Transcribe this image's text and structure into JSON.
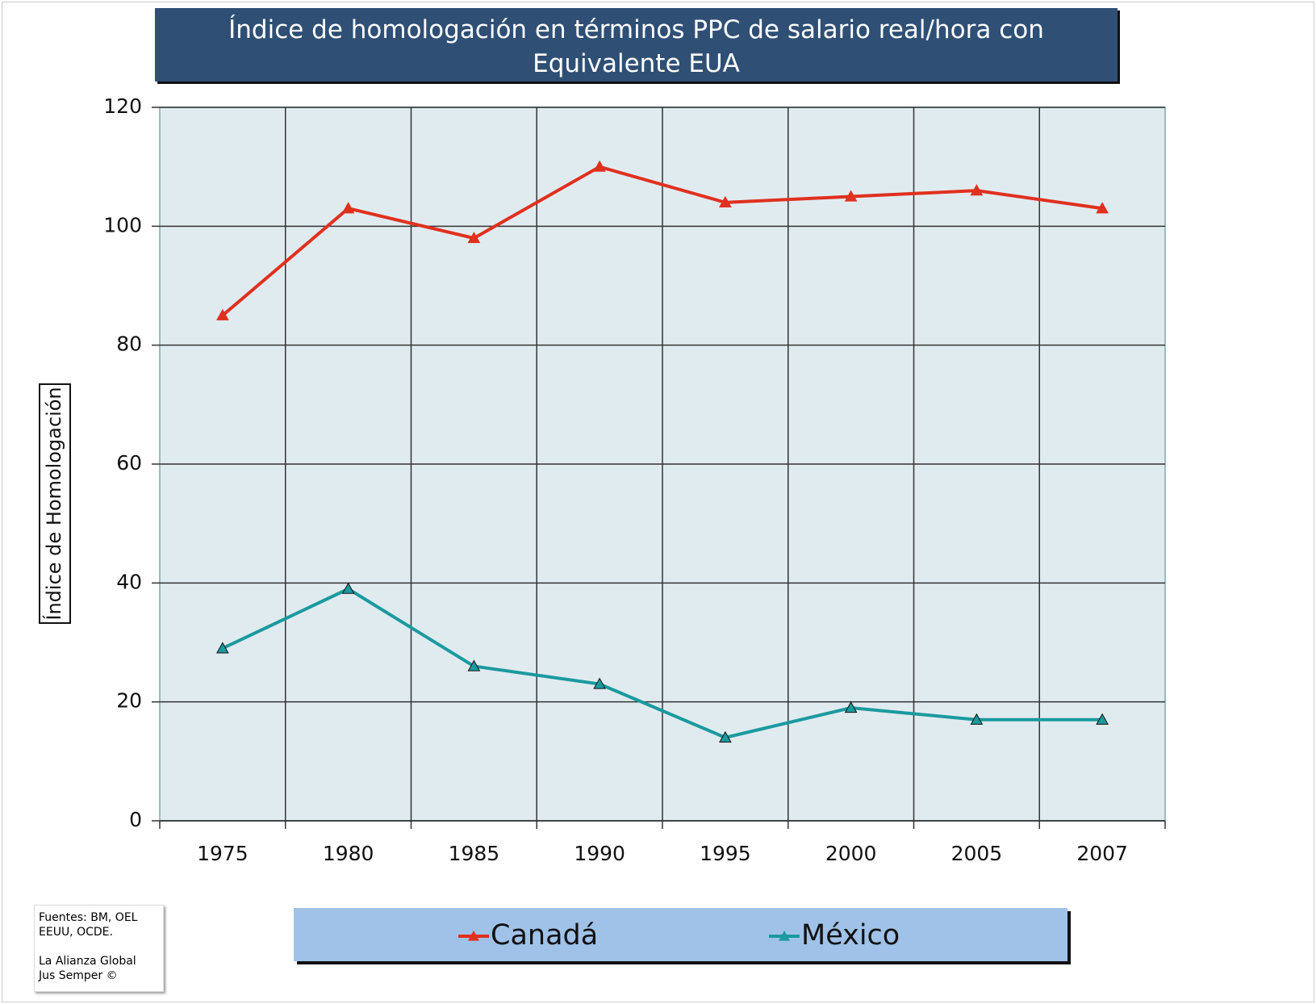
{
  "chart_data": {
    "type": "line",
    "title": "Índice de homologación en términos PPC de salario real/hora con Equivalente EUA",
    "y_label": "Índice de Homologación",
    "categories": [
      "1975",
      "1980",
      "1985",
      "1990",
      "1995",
      "2000",
      "2005",
      "2007"
    ],
    "series": [
      {
        "name": "Canadá",
        "color": "#e0301e",
        "values": [
          85,
          103,
          98,
          110,
          104,
          105,
          106,
          103
        ]
      },
      {
        "name": "México",
        "color": "#1a9a9e",
        "values": [
          29,
          39,
          26,
          23,
          14,
          19,
          17,
          17
        ]
      }
    ],
    "ylim": [
      0,
      120
    ],
    "yticks": [
      0,
      20,
      40,
      60,
      80,
      100,
      120
    ],
    "grid": true,
    "source": [
      "Fuentes: BM, OEL",
      "EEUU, OCDE.",
      "La Alianza Global",
      "Jus Semper ©"
    ]
  }
}
